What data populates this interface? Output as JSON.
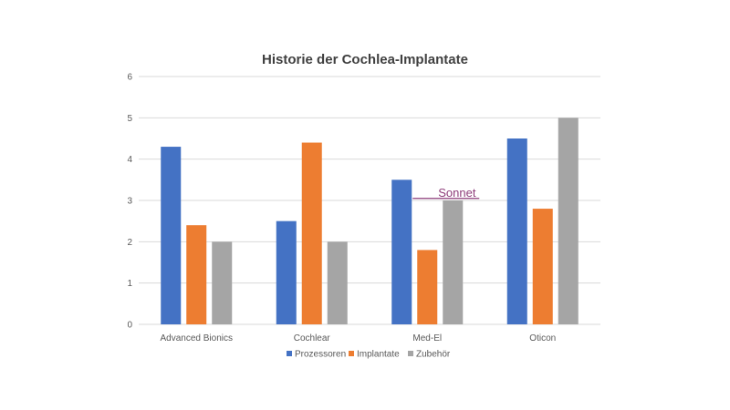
{
  "chart_data": {
    "type": "bar",
    "title": "Historie der Cochlea-Implantate",
    "xlabel": "",
    "ylabel": "",
    "categories": [
      "Advanced Bionics",
      "Cochlear",
      "Med-El",
      "Oticon"
    ],
    "series": [
      {
        "name": "Prozessoren",
        "color": "#4472c4",
        "values": [
          4.3,
          2.5,
          3.5,
          4.5
        ]
      },
      {
        "name": "Implantate",
        "color": "#ed7d31",
        "values": [
          2.4,
          4.4,
          1.8,
          2.8
        ]
      },
      {
        "name": "Zubehör",
        "color": "#a5a5a5",
        "values": [
          2.0,
          2.0,
          3.0,
          5.0
        ]
      }
    ],
    "ylim": [
      0,
      6
    ],
    "yticks": [
      0,
      1,
      2,
      3,
      4,
      5,
      6
    ],
    "grid": true,
    "legend_position": "bottom",
    "annotation": {
      "text": "Sonnet",
      "color": "#8e3d7a",
      "category": "Med-El",
      "value": 3.05
    }
  }
}
